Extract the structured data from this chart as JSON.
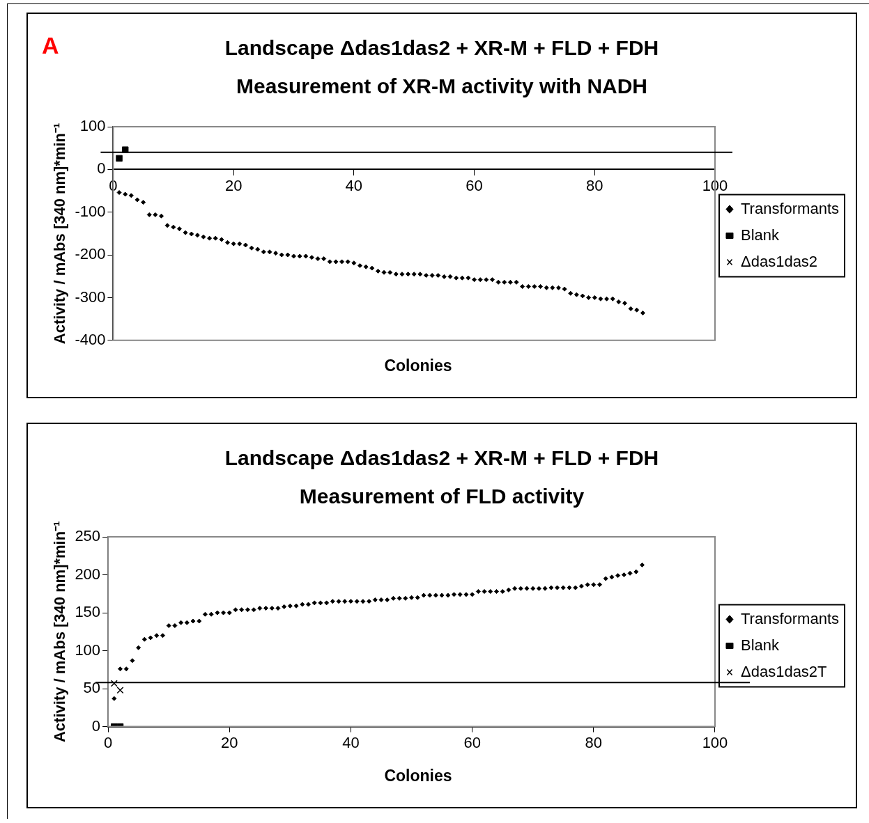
{
  "chart_data": [
    {
      "type": "scatter",
      "title": "Landscape Δdas1das2 + XR-M + FLD + FDH",
      "subtitle": "Measurement of XR-M activity with NADH",
      "xlabel": "Colonies",
      "ylabel": "Activity / mAbs [340 nm]*min⁻¹",
      "annotations": [
        "A"
      ],
      "legend": "right",
      "xlim": [
        0,
        100
      ],
      "xticks": [
        0,
        20,
        40,
        60,
        80,
        100
      ],
      "ylim": [
        -400,
        100
      ],
      "yticks": [
        -400,
        -300,
        -200,
        -100,
        0,
        100
      ],
      "ref_lines": [
        {
          "axis": "y",
          "value": 40,
          "color": "#000000"
        }
      ],
      "series": [
        {
          "name": "Transformants",
          "color": "#000000",
          "marker": "diamond",
          "x": [
            1,
            2,
            3,
            4,
            5,
            6,
            7,
            8,
            9,
            10,
            11,
            12,
            13,
            14,
            15,
            16,
            17,
            18,
            19,
            20,
            21,
            22,
            23,
            24,
            25,
            26,
            27,
            28,
            29,
            30,
            31,
            32,
            33,
            34,
            35,
            36,
            37,
            38,
            39,
            40,
            41,
            42,
            43,
            44,
            45,
            46,
            47,
            48,
            49,
            50,
            51,
            52,
            53,
            54,
            55,
            56,
            57,
            58,
            59,
            60,
            61,
            62,
            63,
            64,
            65,
            66,
            67,
            68,
            69,
            70,
            71,
            72,
            73,
            74,
            75,
            76,
            77,
            78,
            79,
            80,
            81,
            82,
            83,
            84,
            85,
            86,
            87,
            88
          ],
          "values": [
            -54,
            -58,
            -61,
            -71,
            -77,
            -106,
            -106,
            -109,
            -131,
            -135,
            -139,
            -148,
            -151,
            -154,
            -158,
            -161,
            -161,
            -164,
            -171,
            -174,
            -174,
            -177,
            -184,
            -187,
            -193,
            -193,
            -196,
            -200,
            -200,
            -203,
            -203,
            -203,
            -206,
            -209,
            -209,
            -216,
            -216,
            -216,
            -216,
            -219,
            -225,
            -228,
            -231,
            -238,
            -241,
            -241,
            -245,
            -245,
            -245,
            -245,
            -245,
            -248,
            -248,
            -248,
            -251,
            -251,
            -254,
            -254,
            -254,
            -258,
            -258,
            -258,
            -258,
            -264,
            -264,
            -264,
            -264,
            -274,
            -274,
            -274,
            -274,
            -277,
            -277,
            -277,
            -280,
            -290,
            -293,
            -296,
            -300,
            -300,
            -303,
            -303,
            -303,
            -310,
            -313,
            -326,
            -329,
            -336
          ]
        },
        {
          "name": "Blank",
          "color": "#000000",
          "marker": "square",
          "x": [
            1,
            2
          ],
          "values": [
            26,
            46
          ]
        },
        {
          "name": "Δdas1das2",
          "color": "#000000",
          "marker": "cross"
        }
      ]
    },
    {
      "type": "scatter",
      "title": "Landscape Δdas1das2 + XR-M + FLD + FDH",
      "subtitle": "Measurement of FLD activity",
      "xlabel": "Colonies",
      "ylabel": "Activity / mAbs [340 nm]*min⁻¹",
      "legend": "right",
      "xlim": [
        0,
        100
      ],
      "xticks": [
        0,
        20,
        40,
        60,
        80,
        100
      ],
      "ylim": [
        0,
        250
      ],
      "yticks": [
        0,
        50,
        100,
        150,
        200,
        250
      ],
      "ref_lines": [
        {
          "axis": "y",
          "value": 58,
          "color": "#000000"
        }
      ],
      "series": [
        {
          "name": "Transformants",
          "color": "#000000",
          "marker": "diamond",
          "x": [
            1,
            2,
            3,
            4,
            5,
            6,
            7,
            8,
            9,
            10,
            11,
            12,
            13,
            14,
            15,
            16,
            17,
            18,
            19,
            20,
            21,
            22,
            23,
            24,
            25,
            26,
            27,
            28,
            29,
            30,
            31,
            32,
            33,
            34,
            35,
            36,
            37,
            38,
            39,
            40,
            41,
            42,
            43,
            44,
            45,
            46,
            47,
            48,
            49,
            50,
            51,
            52,
            53,
            54,
            55,
            56,
            57,
            58,
            59,
            60,
            61,
            62,
            63,
            64,
            65,
            66,
            67,
            68,
            69,
            70,
            71,
            72,
            73,
            74,
            75,
            76,
            77,
            78,
            79,
            80,
            81,
            82,
            83,
            84,
            85,
            86,
            87,
            88
          ],
          "values": [
            37,
            76,
            76,
            87,
            104,
            115,
            117,
            120,
            120,
            133,
            133,
            137,
            137,
            139,
            139,
            148,
            148,
            150,
            150,
            150,
            154,
            154,
            154,
            154,
            156,
            156,
            156,
            156,
            158,
            159,
            159,
            161,
            161,
            163,
            163,
            163,
            165,
            165,
            165,
            165,
            165,
            165,
            165,
            167,
            167,
            167,
            169,
            169,
            169,
            170,
            170,
            173,
            173,
            173,
            173,
            173,
            174,
            174,
            174,
            174,
            178,
            178,
            178,
            178,
            178,
            180,
            182,
            182,
            182,
            182,
            182,
            182,
            183,
            183,
            183,
            183,
            183,
            185,
            187,
            187,
            187,
            195,
            197,
            199,
            200,
            202,
            204,
            213
          ]
        },
        {
          "name": "Blank",
          "color": "#000000",
          "marker": "square",
          "x": [
            1,
            2
          ],
          "values": [
            0,
            0
          ]
        },
        {
          "name": "Δdas1das2T",
          "color": "#000000",
          "marker": "cross",
          "x": [
            1,
            2
          ],
          "values": [
            57,
            48
          ]
        }
      ]
    }
  ]
}
